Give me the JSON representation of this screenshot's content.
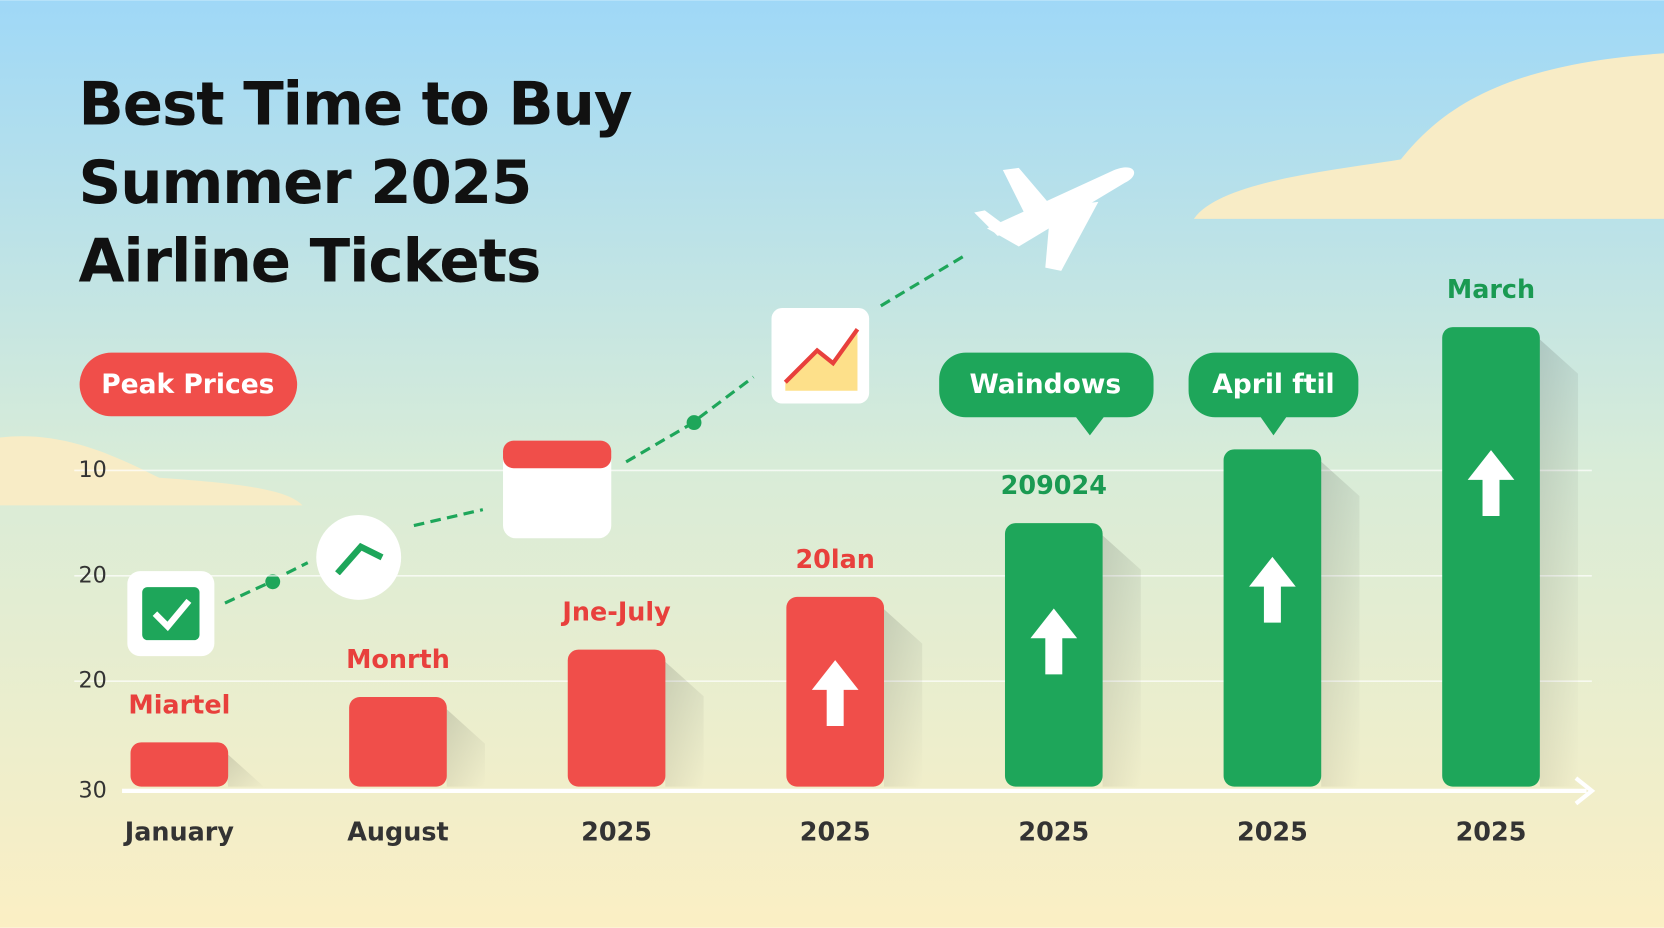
{
  "title": [
    "Best Time to Buy",
    "Summer 2025",
    "Airline Tickets"
  ],
  "badges": {
    "peak": "Peak Prices",
    "windows": "Waindows",
    "april": "April ftil"
  },
  "chart_data": {
    "type": "bar",
    "categories": [
      "January",
      "August",
      "2025",
      "2025",
      "2025",
      "2025",
      "2025"
    ],
    "values": [
      0.42,
      0.85,
      1.3,
      1.8,
      2.5,
      3.2,
      4.36
    ],
    "bar_labels": [
      "Miartel",
      "Monrth",
      "Jne-July",
      "20lan",
      "209024",
      null,
      "March"
    ],
    "colors": [
      "#f04e4a",
      "#f04e4a",
      "#f04e4a",
      "#f04e4a",
      "#1ea65a",
      "#1ea65a",
      "#1ea65a"
    ],
    "label_colors": [
      "#e8403c",
      "#e8403c",
      "#e8403c",
      "#e8403c",
      "#1a9a52",
      "#1a9a52",
      "#1a9a52"
    ],
    "ylim": [
      0,
      4.4
    ],
    "y_axis_labels": [
      "10",
      "20",
      "20",
      "30"
    ],
    "grid": true
  }
}
